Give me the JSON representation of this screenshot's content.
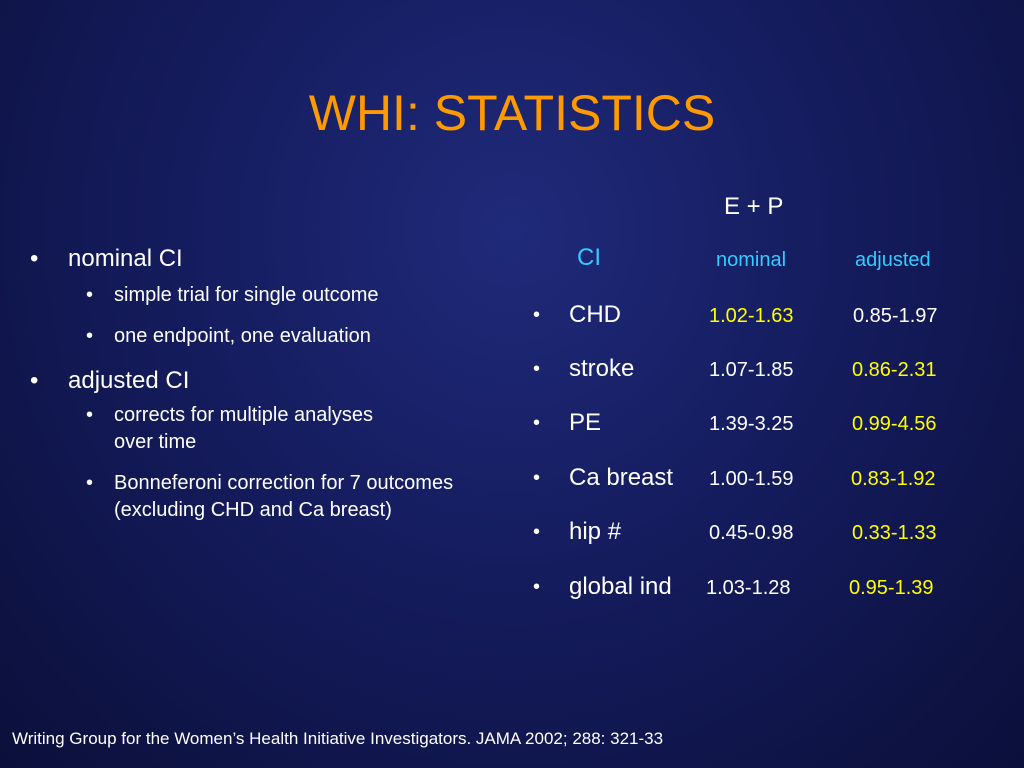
{
  "title": "WHI: STATISTICS",
  "left": {
    "bullet_char": "•",
    "sections": [
      {
        "label": "nominal CI",
        "subitems": [
          "simple trial for single outcome",
          "one endpoint, one evaluation"
        ]
      },
      {
        "label": "adjusted CI",
        "subitems": [
          "corrects for multiple analyses over time",
          "Bonneferoni correction for 7 outcomes (excluding CHD and Ca breast)"
        ]
      }
    ]
  },
  "table": {
    "group_header": "E + P",
    "ci_label": "CI",
    "col_nominal": "nominal",
    "col_adjusted": "adjusted",
    "colors": {
      "white": "#ffffff",
      "highlight": "#ffff00",
      "header": "#33ccff",
      "title": "#ff9900"
    },
    "rows": [
      {
        "name": "CHD",
        "nominal": "1.02-1.63",
        "adjusted": "0.85-1.97",
        "highlight": "nominal"
      },
      {
        "name": "stroke",
        "nominal": "1.07-1.85",
        "adjusted": "0.86-2.31",
        "highlight": "adjusted"
      },
      {
        "name": "PE",
        "nominal": "1.39-3.25",
        "adjusted": "0.99-4.56",
        "highlight": "adjusted"
      },
      {
        "name": "Ca breast",
        "nominal": "1.00-1.59",
        "adjusted": "0.83-1.92",
        "highlight": "adjusted"
      },
      {
        "name": "hip #",
        "nominal": "0.45-0.98",
        "adjusted": "0.33-1.33",
        "highlight": "adjusted"
      },
      {
        "name": "global ind",
        "nominal": "1.03-1.28",
        "adjusted": "0.95-1.39",
        "highlight": "adjusted"
      }
    ]
  },
  "footer": "Writing Group for the Women’s Health Initiative Investigators. JAMA 2002; 288: 321-33"
}
